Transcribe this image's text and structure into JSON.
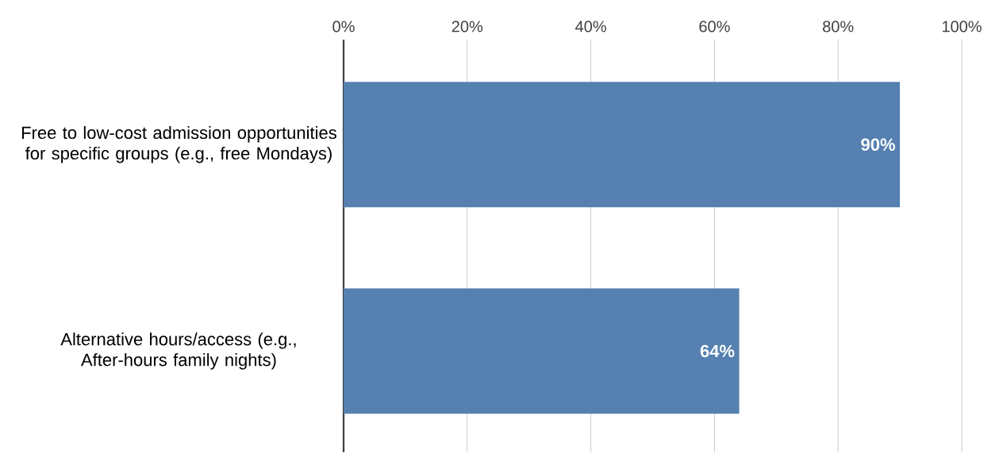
{
  "chart_data": {
    "type": "bar",
    "orientation": "horizontal",
    "categories": [
      "Free to low-cost admission opportunities\n for specific groups (e.g., free Mondays)",
      "Alternative hours/access (e.g., After-hours family nights)"
    ],
    "values": [
      90,
      64
    ],
    "value_labels": [
      "90%",
      "64%"
    ],
    "color": "#5580b0",
    "xlim": [
      0,
      100
    ],
    "xticks": [
      {
        "value": 0,
        "label": "0%"
      },
      {
        "value": 20,
        "label": "20%"
      },
      {
        "value": 40,
        "label": "40%"
      },
      {
        "value": 60,
        "label": "60%"
      },
      {
        "value": 80,
        "label": "80%"
      },
      {
        "value": 100,
        "label": "100%"
      }
    ],
    "grid": "x"
  }
}
